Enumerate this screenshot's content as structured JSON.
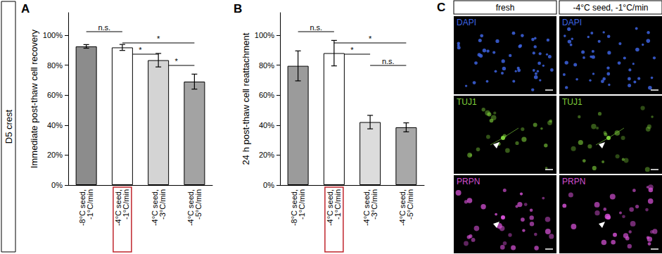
{
  "chart_data": [
    {
      "type": "bar",
      "title": "A",
      "y_label": "Immediate post-thaw cell recovery",
      "categories": [
        "-8°C seed, -1°C/min",
        "-4°C seed, -1°C/min",
        "-4°C seed, -3°C/min",
        "-4°C seed, -5°C/min"
      ],
      "values": [
        92.5,
        91.8,
        83.3,
        69
      ],
      "errors": [
        1.2,
        2,
        4.5,
        5
      ],
      "colors": [
        "#8c8c8c",
        "#ffffff",
        "#d4d4d4",
        "#a3a3a3"
      ],
      "ylim": [
        0,
        115
      ],
      "yticks": [
        {
          "value": 0,
          "label": "0%"
        },
        {
          "value": 20,
          "label": "20%"
        },
        {
          "value": 40,
          "label": "40%"
        },
        {
          "value": 60,
          "label": "60%"
        },
        {
          "value": 80,
          "label": "80%"
        },
        {
          "value": 100,
          "label": "100%"
        }
      ],
      "grid": false,
      "annotations": [
        {
          "type": "bracket",
          "from": 0,
          "to": 1,
          "text": "n.s."
        },
        {
          "type": "bracket",
          "from": 1,
          "to": 3,
          "text": "*"
        },
        {
          "type": "bracket",
          "from": 1,
          "to": 2,
          "text": "*"
        },
        {
          "type": "bracket",
          "from": 2,
          "to": 3,
          "text": "*"
        },
        {
          "type": "box",
          "category": 1,
          "color": "#c0262d"
        }
      ]
    },
    {
      "type": "bar",
      "title": "B",
      "y_label": "24 h post-thaw cell reattachment",
      "categories": [
        "-8°C seed, -1°C/min",
        "-4°C seed, -1°C/min",
        "-4°C seed, -3°C/min",
        "-4°C seed, -5°C/min"
      ],
      "values": [
        79.5,
        88,
        42,
        38.5
      ],
      "errors": [
        10,
        8.5,
        4.5,
        3
      ],
      "colors": [
        "#9b9b9b",
        "#ffffff",
        "#dcdcdc",
        "#a8a8a8"
      ],
      "ylim": [
        0,
        115
      ],
      "yticks": [
        {
          "value": 0,
          "label": "0%"
        },
        {
          "value": 20,
          "label": "20%"
        },
        {
          "value": 40,
          "label": "40%"
        },
        {
          "value": 60,
          "label": "60%"
        },
        {
          "value": 80,
          "label": "80%"
        },
        {
          "value": 100,
          "label": "100%"
        }
      ],
      "grid": false,
      "annotations": [
        {
          "type": "bracket",
          "from": 0,
          "to": 1,
          "text": "n.s."
        },
        {
          "type": "bracket",
          "from": 1,
          "to": 3,
          "text": "*"
        },
        {
          "type": "bracket",
          "from": 1,
          "to": 2,
          "text": "*"
        },
        {
          "type": "bracket",
          "from": 2,
          "to": 3,
          "text": "n.s."
        },
        {
          "type": "box",
          "category": 1,
          "color": "#c0262d"
        }
      ]
    }
  ],
  "figure": {
    "side_label": "D5 crest",
    "panel_c": {
      "title": "C",
      "columns": [
        "fresh",
        "-4°C seed, -1°C/min"
      ],
      "rows": [
        {
          "label": "DAPI",
          "color": "#3d63e0"
        },
        {
          "label": "TUJ1",
          "color": "#7fd13b"
        },
        {
          "label": "PRPN",
          "color": "#d04fd0"
        }
      ]
    }
  }
}
